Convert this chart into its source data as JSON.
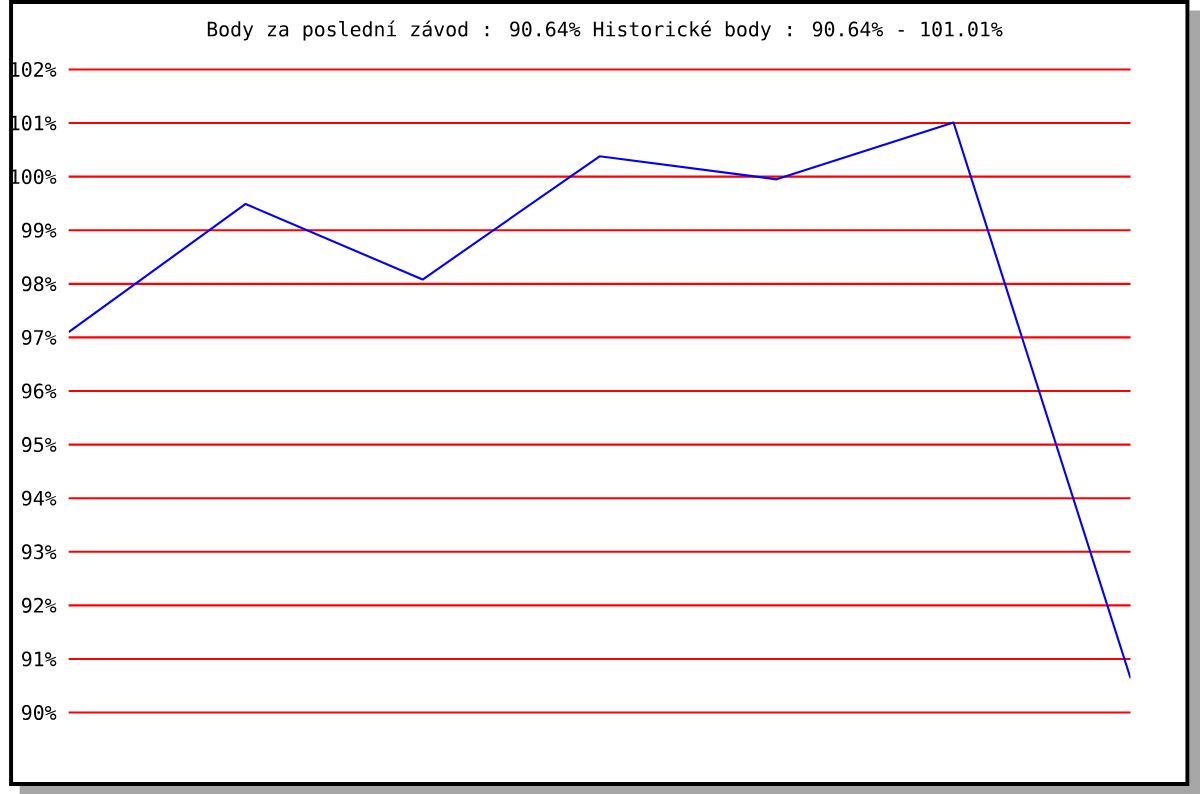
{
  "chart_data": {
    "type": "line",
    "title": "Body za poslední závod : 90.64%  Historické body : 90.64% - 101.01%",
    "categories": [
      null,
      null,
      null,
      null,
      null,
      null,
      null
    ],
    "series": [
      {
        "color": "#0000ff",
        "values": [
          97.1,
          99.49,
          98.08,
          100.38,
          99.95,
          101.01,
          90.64
        ]
      }
    ],
    "ylim": [
      90,
      102
    ],
    "yticks": [
      {
        "value": 90,
        "label": "90%"
      },
      {
        "value": 91,
        "label": "91%"
      },
      {
        "value": 92,
        "label": "92%"
      },
      {
        "value": 93,
        "label": "93%"
      },
      {
        "value": 94,
        "label": "94%"
      },
      {
        "value": 95,
        "label": "95%"
      },
      {
        "value": 96,
        "label": "96%"
      },
      {
        "value": 97,
        "label": "97%"
      },
      {
        "value": 98,
        "label": "98%"
      },
      {
        "value": 99,
        "label": "99%"
      },
      {
        "value": 100,
        "label": "100%"
      },
      {
        "value": 101,
        "label": "101%"
      },
      {
        "value": 102,
        "label": "102%"
      }
    ],
    "grid": "y",
    "marker": "none",
    "line_style": "solid"
  }
}
